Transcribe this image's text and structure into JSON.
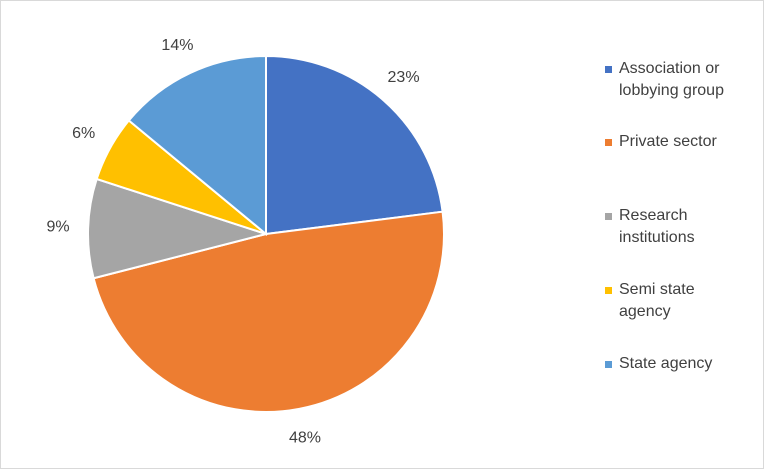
{
  "chart_data": {
    "type": "pie",
    "categories": [
      "Association or lobbying group",
      "Private sector",
      "Research institutions",
      "Semi state agency",
      "State agency"
    ],
    "values": [
      23,
      48,
      9,
      6,
      14
    ],
    "value_labels": [
      "23%",
      "48%",
      "9%",
      "6%",
      "14%"
    ],
    "colors": [
      "#4472c4",
      "#ed7d31",
      "#a5a5a5",
      "#ffc000",
      "#5b9bd5"
    ],
    "legend": "right"
  }
}
